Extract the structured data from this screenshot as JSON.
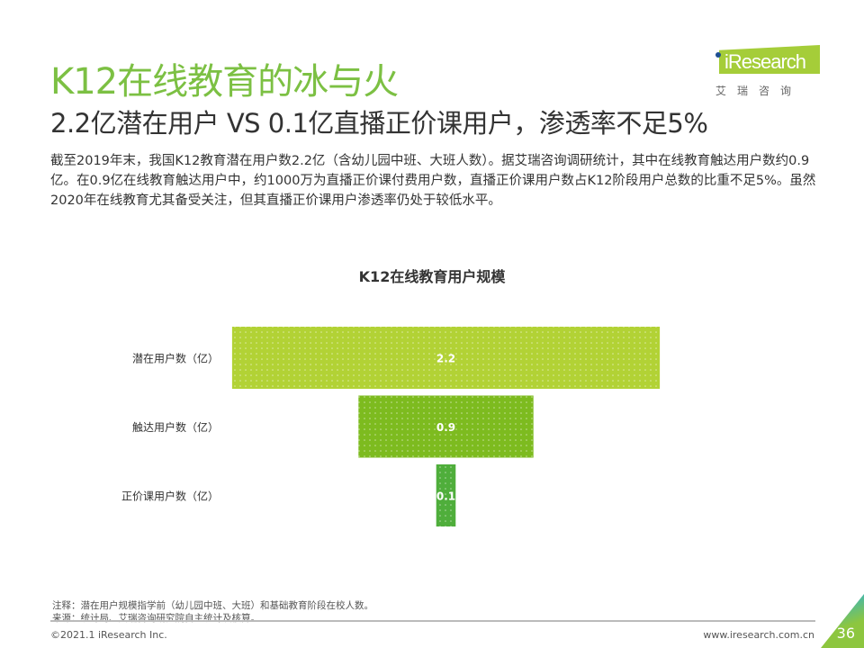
{
  "header": {
    "title": "K12在线教育的冰与火",
    "subtitle": "2.2亿潜在用户 VS 0.1亿直播正价课用户，渗透率不足5%",
    "body": "截至2019年末，我国K12教育潜在用户数2.2亿（含幼儿园中班、大班人数）。据艾瑞咨询调研统计，其中在线教育触达用户数约0.9亿。在0.9亿在线教育触达用户中，约1000万为直播正价课付费用户数，直播正价课用户数占K12阶段用户总数的比重不足5%。虽然2020年在线教育尤其备受关注，但其直播正价课用户渗透率仍处于较低水平。"
  },
  "logo": {
    "text": "iResearch",
    "cn": "艾瑞咨询"
  },
  "chart_data": {
    "type": "funnel",
    "title": "K12在线教育用户规模",
    "categories": [
      "潜在用户数（亿）",
      "触达用户数（亿）",
      "正价课用户数（亿）"
    ],
    "values": [
      2.2,
      0.9,
      0.1
    ],
    "data_labels": [
      "2.2",
      "0.9",
      "0.1"
    ],
    "colors": [
      "#b2d235",
      "#7dbb1f",
      "#4fae3b"
    ]
  },
  "footer": {
    "note": "注释：潜在用户规模指学前（幼儿园中班、大班）和基础教育阶段在校人数。",
    "source": "来源：统计局、艾瑞咨询研究院自主统计及核算。",
    "copyright": "©2021.1 iResearch Inc.",
    "url": "www.iresearch.com.cn",
    "page": "36"
  }
}
